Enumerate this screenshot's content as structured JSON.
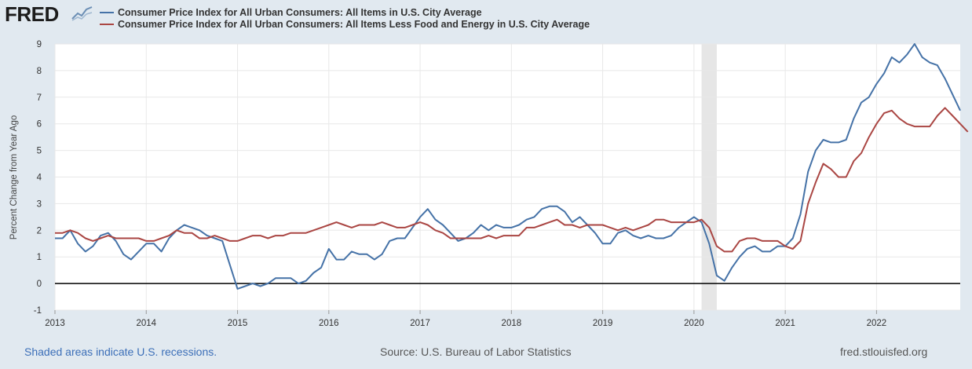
{
  "header": {
    "logo_text": "FRED",
    "logo_icon": "line-chart-icon"
  },
  "footer": {
    "recession_note": "Shaded areas indicate U.S. recessions.",
    "source": "Source: U.S. Bureau of Labor Statistics",
    "site": "fred.stlouisfed.org"
  },
  "chart_data": {
    "type": "line",
    "title": "",
    "xlabel": "",
    "ylabel": "Percent Change from Year Ago",
    "ylim": [
      -1,
      9
    ],
    "y_ticks": [
      -1,
      0,
      1,
      2,
      3,
      4,
      5,
      6,
      7,
      8,
      9
    ],
    "x_ticks": [
      "2013",
      "2014",
      "2015",
      "2016",
      "2017",
      "2018",
      "2019",
      "2020",
      "2021",
      "2022"
    ],
    "x_start": "2013-01",
    "x_end": "2022-12",
    "grid": true,
    "recessions": [
      [
        "2020-02",
        "2020-04"
      ]
    ],
    "legend_position": "top-left",
    "series": [
      {
        "name": "Consumer Price Index for All Urban Consumers: All Items in U.S. City Average",
        "color": "#4572a7",
        "values": [
          1.7,
          1.7,
          2.0,
          1.5,
          1.2,
          1.4,
          1.8,
          1.9,
          1.6,
          1.1,
          0.9,
          1.2,
          1.5,
          1.5,
          1.2,
          1.7,
          2.0,
          2.2,
          2.1,
          2.0,
          1.8,
          1.7,
          1.6,
          0.7,
          -0.2,
          -0.1,
          0.0,
          -0.1,
          0.0,
          0.2,
          0.2,
          0.2,
          0.0,
          0.1,
          0.4,
          0.6,
          1.3,
          0.9,
          0.9,
          1.2,
          1.1,
          1.1,
          0.9,
          1.1,
          1.6,
          1.7,
          1.7,
          2.1,
          2.5,
          2.8,
          2.4,
          2.2,
          1.9,
          1.6,
          1.7,
          1.9,
          2.2,
          2.0,
          2.2,
          2.1,
          2.1,
          2.2,
          2.4,
          2.5,
          2.8,
          2.9,
          2.9,
          2.7,
          2.3,
          2.5,
          2.2,
          1.9,
          1.5,
          1.5,
          1.9,
          2.0,
          1.8,
          1.7,
          1.8,
          1.7,
          1.7,
          1.8,
          2.1,
          2.3,
          2.5,
          2.3,
          1.5,
          0.3,
          0.1,
          0.6,
          1.0,
          1.3,
          1.4,
          1.2,
          1.2,
          1.4,
          1.4,
          1.7,
          2.6,
          4.2,
          5.0,
          5.4,
          5.3,
          5.3,
          5.4,
          6.2,
          6.8,
          7.0,
          7.5,
          7.9,
          8.5,
          8.3,
          8.6,
          9.0,
          8.5,
          8.3,
          8.2,
          7.7,
          7.1,
          6.5
        ]
      },
      {
        "name": "Consumer Price Index for All Urban Consumers: All Items Less Food and Energy in U.S. City Average",
        "color": "#aa4643",
        "values": [
          1.9,
          1.9,
          2.0,
          1.9,
          1.7,
          1.6,
          1.7,
          1.8,
          1.7,
          1.7,
          1.7,
          1.7,
          1.6,
          1.6,
          1.7,
          1.8,
          2.0,
          1.9,
          1.9,
          1.7,
          1.7,
          1.8,
          1.7,
          1.6,
          1.6,
          1.7,
          1.8,
          1.8,
          1.7,
          1.8,
          1.8,
          1.9,
          1.9,
          1.9,
          2.0,
          2.1,
          2.2,
          2.3,
          2.2,
          2.1,
          2.2,
          2.2,
          2.2,
          2.3,
          2.2,
          2.1,
          2.1,
          2.2,
          2.3,
          2.2,
          2.0,
          1.9,
          1.7,
          1.7,
          1.7,
          1.7,
          1.7,
          1.8,
          1.7,
          1.8,
          1.8,
          1.8,
          2.1,
          2.1,
          2.2,
          2.3,
          2.4,
          2.2,
          2.2,
          2.1,
          2.2,
          2.2,
          2.2,
          2.1,
          2.0,
          2.1,
          2.0,
          2.1,
          2.2,
          2.4,
          2.4,
          2.3,
          2.3,
          2.3,
          2.3,
          2.4,
          2.1,
          1.4,
          1.2,
          1.2,
          1.6,
          1.7,
          1.7,
          1.6,
          1.6,
          1.6,
          1.4,
          1.3,
          1.6,
          3.0,
          3.8,
          4.5,
          4.3,
          4.0,
          4.0,
          4.6,
          4.9,
          5.5,
          6.0,
          6.4,
          6.5,
          6.2,
          6.0,
          5.9,
          5.9,
          5.9,
          6.3,
          6.6,
          6.3,
          6.0,
          5.7
        ]
      }
    ]
  }
}
